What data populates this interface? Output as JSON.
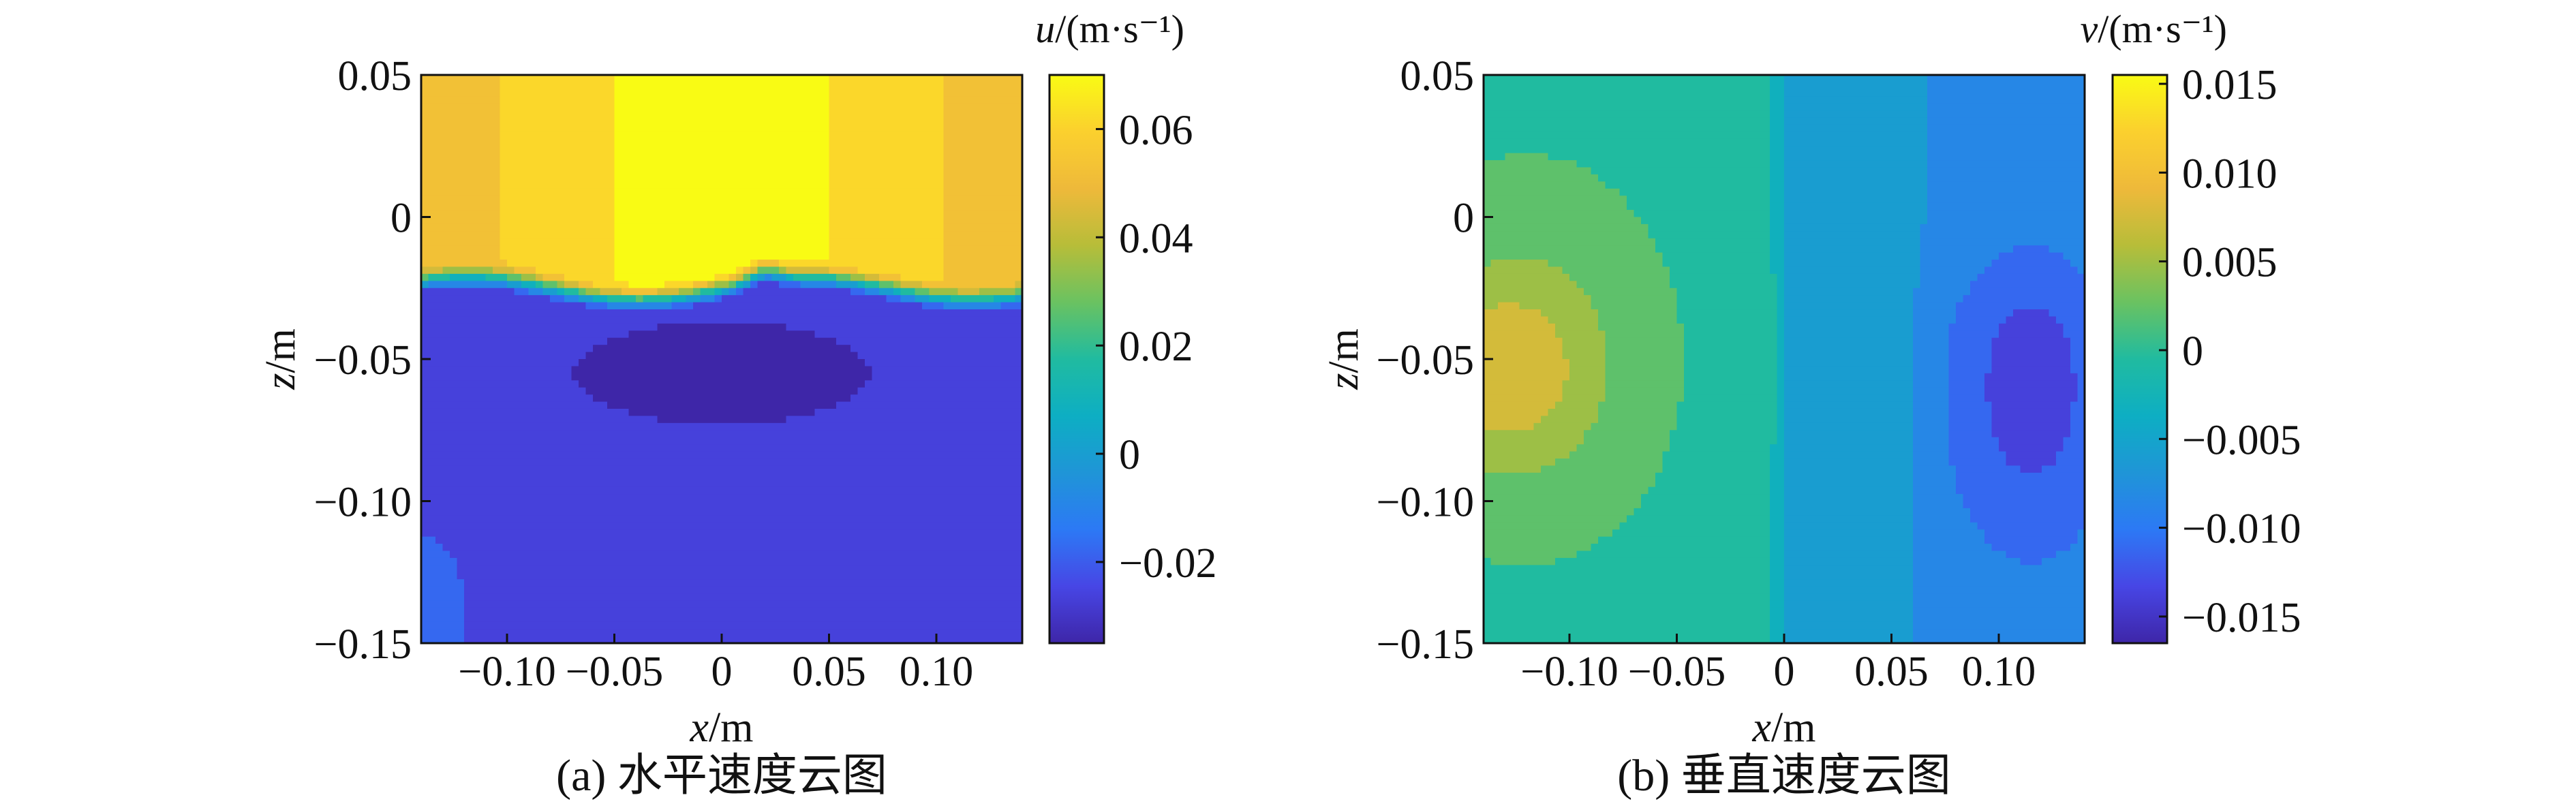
{
  "chart_data": [
    {
      "type": "heatmap",
      "panel": "a",
      "caption": "(a) 水平速度云图",
      "xlabel_var": "x",
      "xlabel_unit": "/m",
      "ylabel_var": "z",
      "ylabel_unit": "/m",
      "colorbar_var": "u",
      "colorbar_unit": "/(m·s⁻¹)",
      "xlim": [
        -0.14,
        0.14
      ],
      "ylim": [
        -0.15,
        0.05
      ],
      "xticks": [
        -0.1,
        -0.05,
        0,
        0.05,
        0.1
      ],
      "xtick_labels": [
        "−0.10",
        "−0.05",
        "0",
        "0.05",
        "0.10"
      ],
      "yticks": [
        0.05,
        0,
        -0.05,
        -0.1,
        -0.15
      ],
      "ytick_labels": [
        "0.05",
        "0",
        "−0.05",
        "−0.10",
        "−0.15"
      ],
      "clim": [
        -0.035,
        0.07
      ],
      "cticks": [
        0.06,
        0.04,
        0.02,
        0,
        -0.02
      ],
      "ctick_labels": [
        "0.06",
        "0.04",
        "0.02",
        "0",
        "−0.02"
      ],
      "colormap": "parula",
      "field_description_values": {
        "upper_region_z_gt_-0.02": 0.07,
        "upper_region_edges": 0.05,
        "shear_layer_z": -0.025,
        "lower_core_z_-0.04_to_-0.07": -0.035,
        "lower_region": -0.028,
        "lower_left_corner": -0.018
      }
    },
    {
      "type": "heatmap",
      "panel": "b",
      "caption": "(b) 垂直速度云图",
      "xlabel_var": "x",
      "xlabel_unit": "/m",
      "ylabel_var": "z",
      "ylabel_unit": "/m",
      "colorbar_var": "v",
      "colorbar_unit": "/(m·s⁻¹)",
      "xlim": [
        -0.14,
        0.14
      ],
      "ylim": [
        -0.15,
        0.05
      ],
      "xticks": [
        -0.1,
        -0.05,
        0,
        0.05,
        0.1
      ],
      "xtick_labels": [
        "−0.10",
        "−0.05",
        "0",
        "0.05",
        "0.10"
      ],
      "yticks": [
        0.05,
        0,
        -0.05,
        -0.1,
        -0.15
      ],
      "ytick_labels": [
        "0.05",
        "0",
        "−0.05",
        "−0.10",
        "−0.15"
      ],
      "clim": [
        -0.0165,
        0.0155
      ],
      "cticks": [
        0.015,
        0.01,
        0.005,
        0,
        -0.005,
        -0.01,
        -0.015
      ],
      "ctick_labels": [
        "0.015",
        "0.010",
        "0.005",
        "0",
        "−0.005",
        "−0.010",
        "−0.015"
      ],
      "colormap": "parula",
      "field_description_values": {
        "left_core_x_-0.13_z_-0.05": 0.0095,
        "left_band": 0.005,
        "center_left_x_-0.07_to_-0.01": 0.0003,
        "center_right_x_0_to_0.06": -0.005,
        "right_region": -0.009,
        "right_core_x_0.11_z_-0.06": -0.0145
      }
    }
  ]
}
